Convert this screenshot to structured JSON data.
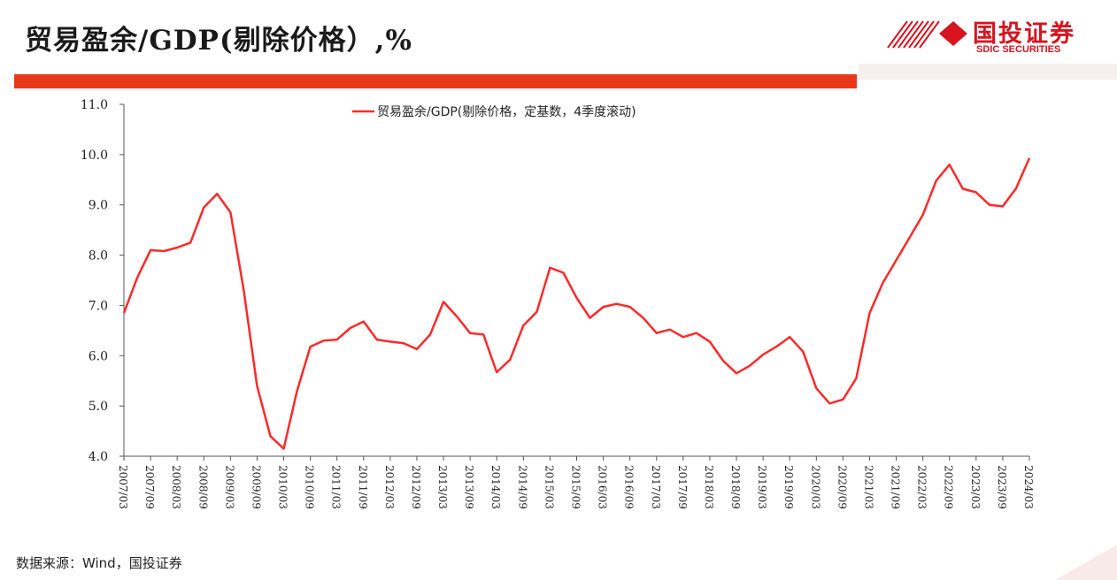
{
  "header": {
    "title": "贸易盈余/GDP(剔除价格）,%",
    "logo_cn": "国投证券",
    "logo_en": "SDIC SECURITIES"
  },
  "footer": {
    "source": "数据来源：Wind，国投证券"
  },
  "colors": {
    "accent": "#e8381c",
    "line": "#ff2a2a",
    "brand": "#d7141f"
  },
  "chart_data": {
    "type": "line",
    "title": "",
    "xlabel": "",
    "ylabel": "",
    "ylim": [
      4.0,
      11.0
    ],
    "yticks": [
      "4.0",
      "5.0",
      "6.0",
      "7.0",
      "8.0",
      "9.0",
      "10.0",
      "11.0"
    ],
    "grid": false,
    "legend": "top-center",
    "x_tick_labels": [
      "2007/03",
      "2007/09",
      "2008/03",
      "2008/09",
      "2009/03",
      "2009/09",
      "2010/03",
      "2010/09",
      "2011/03",
      "2011/09",
      "2012/03",
      "2012/09",
      "2013/03",
      "2013/09",
      "2014/03",
      "2014/09",
      "2015/03",
      "2015/09",
      "2016/03",
      "2016/09",
      "2017/03",
      "2017/09",
      "2018/03",
      "2018/09",
      "2019/03",
      "2019/09",
      "2020/03",
      "2020/09",
      "2021/03",
      "2021/09",
      "2022/03",
      "2022/09",
      "2023/03",
      "2023/09",
      "2024/03"
    ],
    "x": [
      "2007/03",
      "2007/06",
      "2007/09",
      "2007/12",
      "2008/03",
      "2008/06",
      "2008/09",
      "2008/12",
      "2009/03",
      "2009/06",
      "2009/09",
      "2009/12",
      "2010/03",
      "2010/06",
      "2010/09",
      "2010/12",
      "2011/03",
      "2011/06",
      "2011/09",
      "2011/12",
      "2012/03",
      "2012/06",
      "2012/09",
      "2012/12",
      "2013/03",
      "2013/06",
      "2013/09",
      "2013/12",
      "2014/03",
      "2014/06",
      "2014/09",
      "2014/12",
      "2015/03",
      "2015/06",
      "2015/09",
      "2015/12",
      "2016/03",
      "2016/06",
      "2016/09",
      "2016/12",
      "2017/03",
      "2017/06",
      "2017/09",
      "2017/12",
      "2018/03",
      "2018/06",
      "2018/09",
      "2018/12",
      "2019/03",
      "2019/06",
      "2019/09",
      "2019/12",
      "2020/03",
      "2020/06",
      "2020/09",
      "2020/12",
      "2021/03",
      "2021/06",
      "2021/09",
      "2021/12",
      "2022/03",
      "2022/06",
      "2022/09",
      "2022/12",
      "2023/03",
      "2023/06",
      "2023/09",
      "2023/12",
      "2024/03"
    ],
    "series": [
      {
        "name": "贸易盈余/GDP(剔除价格，定基数，4季度滚动)",
        "values": [
          6.85,
          7.55,
          8.1,
          8.08,
          8.15,
          8.25,
          8.95,
          9.22,
          8.85,
          7.3,
          5.4,
          4.4,
          4.15,
          5.3,
          6.18,
          6.3,
          6.32,
          6.55,
          6.68,
          6.32,
          6.28,
          6.25,
          6.13,
          6.42,
          7.07,
          6.78,
          6.45,
          6.42,
          5.67,
          5.92,
          6.6,
          6.87,
          7.75,
          7.65,
          7.15,
          6.75,
          6.97,
          7.03,
          6.97,
          6.75,
          6.45,
          6.52,
          6.37,
          6.45,
          6.28,
          5.9,
          5.65,
          5.8,
          6.02,
          6.18,
          6.37,
          6.08,
          5.35,
          5.05,
          5.13,
          5.55,
          6.85,
          7.45,
          7.9,
          8.35,
          8.8,
          9.48,
          9.8,
          9.32,
          9.25,
          9.0,
          8.97,
          9.33,
          9.93
        ]
      }
    ]
  }
}
